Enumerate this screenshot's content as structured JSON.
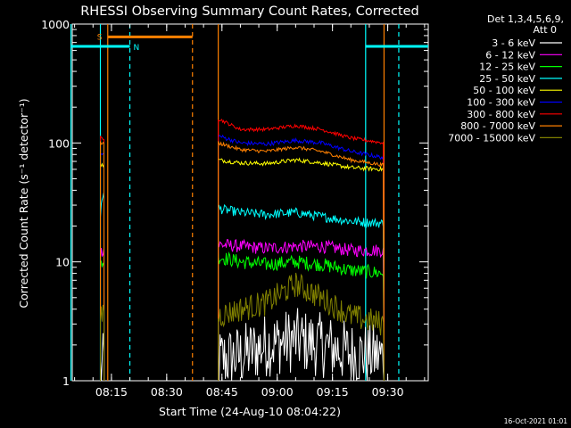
{
  "chart_data": {
    "type": "line",
    "title": "RHESSI Observing Summary Count Rates, Corrected",
    "xlabel": "Start Time (24-Aug-10 08:04:22)",
    "ylabel": "Corrected Count Rate (s⁻¹ detector⁻¹)",
    "y_scale": "log",
    "ylim": [
      1,
      1000
    ],
    "xlim": [
      "08:04:22",
      "09:41:00"
    ],
    "x_ticks": [
      "08:15",
      "08:30",
      "08:45",
      "09:00",
      "09:15",
      "09:30"
    ],
    "y_ticks": [
      "1",
      "10",
      "100",
      "1000"
    ],
    "legend_header": [
      "Det 1,3,4,5,6,9,",
      "Att 0"
    ],
    "footer_date": "16-Oct-2021 01:01",
    "flag_labels": {
      "saa": "S",
      "night": "N"
    },
    "series": [
      {
        "name": "3 - 6 keV",
        "color": "#ffffff",
        "segments": [
          {
            "x": [
              "08:12",
              "08:13"
            ],
            "y": [
              1.2,
              1.4
            ]
          },
          {
            "x": [
              "08:44",
              "08:50",
              "08:57",
              "09:05",
              "09:12",
              "09:20",
              "09:29"
            ],
            "y": [
              1.5,
              1.6,
              2.0,
              2.2,
              2.0,
              1.7,
              1.6
            ]
          }
        ]
      },
      {
        "name": "6 - 12 keV",
        "color": "#ff00ff",
        "segments": [
          {
            "x": [
              "08:12",
              "08:13"
            ],
            "y": [
              12,
              13
            ]
          },
          {
            "x": [
              "08:44",
              "08:50",
              "08:57",
              "09:05",
              "09:12",
              "09:20",
              "09:29"
            ],
            "y": [
              14,
              13.5,
              13,
              13.5,
              13.5,
              12.5,
              12.5
            ]
          }
        ]
      },
      {
        "name": "12 - 25 keV",
        "color": "#00ff00",
        "segments": [
          {
            "x": [
              "08:12",
              "08:13"
            ],
            "y": [
              9.5,
              10
            ]
          },
          {
            "x": [
              "08:44",
              "08:50",
              "08:57",
              "09:05",
              "09:12",
              "09:20",
              "09:29"
            ],
            "y": [
              11,
              10,
              9.5,
              10,
              9.5,
              8.5,
              8
            ]
          }
        ]
      },
      {
        "name": "25 - 50 keV",
        "color": "#00ffff",
        "segments": [
          {
            "x": [
              "08:12",
              "08:13"
            ],
            "y": [
              25,
              42
            ]
          },
          {
            "x": [
              "08:44",
              "08:50",
              "08:57",
              "09:05",
              "09:12",
              "09:20",
              "09:29"
            ],
            "y": [
              28,
              26,
              25,
              26,
              24,
              22,
              21
            ]
          }
        ]
      },
      {
        "name": "50 - 100 keV",
        "color": "#ffff00",
        "segments": [
          {
            "x": [
              "08:12",
              "08:13"
            ],
            "y": [
              65,
              65
            ]
          },
          {
            "x": [
              "08:44",
              "08:50",
              "08:57",
              "09:05",
              "09:12",
              "09:20",
              "09:29"
            ],
            "y": [
              72,
              68,
              67,
              72,
              68,
              62,
              60
            ]
          }
        ]
      },
      {
        "name": "100 - 300 keV",
        "color": "#0000ff",
        "segments": [
          {
            "x": [
              "08:12",
              "08:13"
            ],
            "y": [
              80,
              80
            ]
          },
          {
            "x": [
              "08:44",
              "08:50",
              "08:57",
              "09:05",
              "09:12",
              "09:20",
              "09:29"
            ],
            "y": [
              115,
              100,
              98,
              105,
              100,
              85,
              75
            ]
          }
        ]
      },
      {
        "name": "300 - 800 keV",
        "color": "#ff0000",
        "segments": [
          {
            "x": [
              "08:12",
              "08:13"
            ],
            "y": [
              110,
              110
            ]
          },
          {
            "x": [
              "08:44",
              "08:50",
              "08:57",
              "09:05",
              "09:12",
              "09:20",
              "09:29"
            ],
            "y": [
              160,
              130,
              130,
              140,
              130,
              110,
              100
            ]
          }
        ]
      },
      {
        "name": "800 - 7000 keV",
        "color": "#ff8000",
        "segments": [
          {
            "x": [
              "08:12",
              "08:13"
            ],
            "y": [
              100,
              100
            ]
          },
          {
            "x": [
              "08:44",
              "08:50",
              "08:57",
              "09:05",
              "09:12",
              "09:20",
              "09:29"
            ],
            "y": [
              100,
              88,
              85,
              92,
              85,
              72,
              65
            ]
          }
        ]
      },
      {
        "name": "7000 - 15000 keV",
        "color": "#808000",
        "segments": [
          {
            "x": [
              "08:12",
              "08:13"
            ],
            "y": [
              3.5,
              4
            ]
          },
          {
            "x": [
              "08:44",
              "08:50",
              "08:57",
              "09:05",
              "09:12",
              "09:20",
              "09:29"
            ],
            "y": [
              3.5,
              4,
              4.5,
              6.5,
              5,
              3.5,
              3
            ]
          }
        ]
      }
    ],
    "flags": {
      "saa_bar": {
        "color": "#ff8000",
        "x": [
          "08:14",
          "08:37"
        ],
        "y": 780
      },
      "night_bars": {
        "color": "#00ffff",
        "y": 650,
        "ranges": [
          [
            "08:04",
            "08:20"
          ],
          [
            "09:24",
            "09:41"
          ]
        ]
      },
      "vlines": [
        {
          "x": "08:04",
          "color": "#00ffff",
          "style": "solid"
        },
        {
          "x": "08:12",
          "color": "#00ffff",
          "style": "solid"
        },
        {
          "x": "08:14",
          "color": "#ff8000",
          "style": "solid"
        },
        {
          "x": "08:20",
          "color": "#00ffff",
          "style": "dashed"
        },
        {
          "x": "08:37",
          "color": "#ff8000",
          "style": "dashed"
        },
        {
          "x": "08:44",
          "color": "#ff8000",
          "style": "solid"
        },
        {
          "x": "09:24",
          "color": "#00ffff",
          "style": "solid"
        },
        {
          "x": "09:29",
          "color": "#ff8000",
          "style": "solid"
        },
        {
          "x": "09:33",
          "color": "#00ffff",
          "style": "dashed"
        }
      ]
    }
  }
}
